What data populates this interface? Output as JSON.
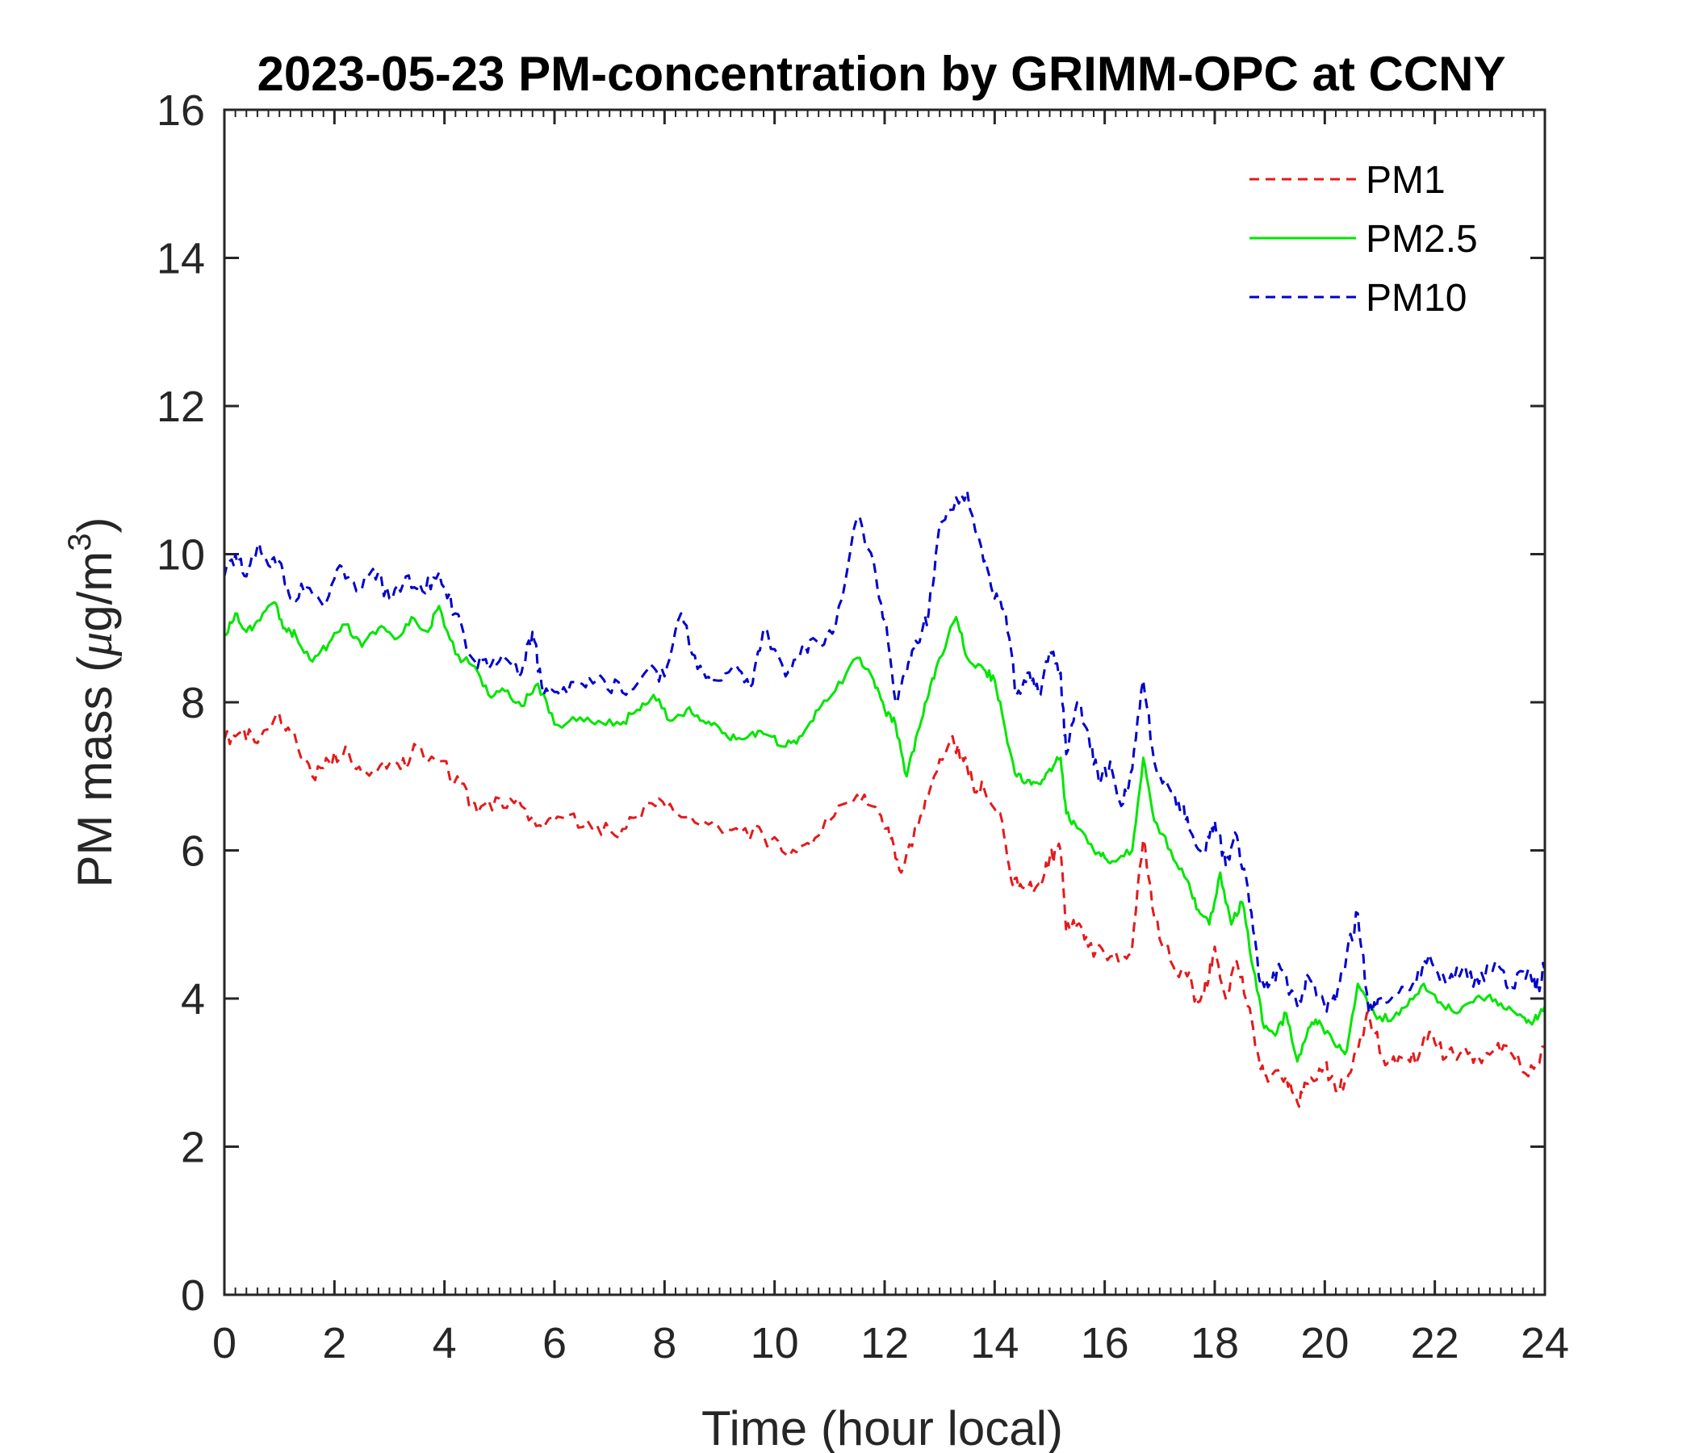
{
  "chart_data": {
    "type": "line",
    "title": "2023-05-23 PM-concentration by GRIMM-OPC at CCNY",
    "xlabel": "Time (hour local)",
    "ylabel_main": "PM mass (",
    "ylabel_unit_mu": "μ",
    "ylabel_unit_rest": "g/m",
    "ylabel_unit_sup": "3",
    "ylabel_close": ")",
    "xlim": [
      0,
      24
    ],
    "ylim": [
      0,
      16
    ],
    "xticks": [
      "0",
      "2",
      "4",
      "6",
      "8",
      "10",
      "12",
      "14",
      "16",
      "18",
      "20",
      "22",
      "24"
    ],
    "yticks": [
      "0",
      "2",
      "4",
      "6",
      "8",
      "10",
      "12",
      "14",
      "16"
    ],
    "legend_position": "top-right",
    "series": [
      {
        "name": "PM1",
        "color": "#e41a1c",
        "style": "dashed",
        "x": [
          0,
          0.3,
          0.6,
          0.95,
          1.2,
          1.6,
          1.9,
          2.2,
          2.5,
          2.9,
          3.2,
          3.5,
          3.9,
          4.3,
          4.6,
          5.0,
          5.4,
          5.8,
          6.1,
          6.6,
          7.1,
          7.5,
          7.9,
          8.3,
          8.8,
          9.3,
          9.8,
          10.2,
          10.6,
          11.0,
          11.5,
          11.9,
          12.1,
          12.3,
          12.6,
          12.9,
          13.2,
          13.4,
          13.6,
          13.8,
          14.1,
          14.3,
          14.5,
          14.8,
          15.0,
          15.2,
          15.3,
          15.5,
          15.7,
          16.0,
          16.3,
          16.5,
          16.7,
          16.9,
          17.2,
          17.5,
          17.7,
          17.9,
          18.0,
          18.2,
          18.4,
          18.6,
          18.8,
          19.0,
          19.3,
          19.5,
          19.7,
          20.0,
          20.2,
          20.4,
          20.6,
          20.8,
          21.1,
          21.4,
          21.7,
          21.9,
          22.2,
          22.5,
          22.8,
          23.1,
          23.4,
          23.7,
          24.0
        ],
        "values": [
          7.5,
          7.6,
          7.45,
          7.85,
          7.6,
          7.0,
          7.2,
          7.4,
          7.05,
          7.2,
          7.1,
          7.4,
          7.2,
          6.9,
          6.5,
          6.7,
          6.6,
          6.3,
          6.45,
          6.4,
          6.2,
          6.45,
          6.7,
          6.45,
          6.35,
          6.3,
          6.2,
          5.95,
          6.1,
          6.4,
          6.75,
          6.5,
          6.15,
          5.7,
          6.3,
          7.0,
          7.5,
          7.3,
          6.9,
          6.85,
          6.5,
          5.6,
          5.5,
          5.55,
          5.9,
          6.0,
          4.9,
          5.0,
          4.7,
          4.6,
          4.5,
          4.7,
          6.15,
          5.1,
          4.5,
          4.3,
          3.95,
          4.3,
          4.7,
          4.0,
          4.5,
          3.9,
          3.2,
          2.9,
          2.95,
          2.6,
          2.85,
          3.1,
          2.75,
          2.9,
          3.3,
          3.8,
          3.1,
          3.2,
          3.2,
          3.55,
          3.2,
          3.3,
          3.2,
          3.3,
          3.25,
          2.95,
          3.35
        ]
      },
      {
        "name": "PM2.5",
        "color": "#00e600",
        "style": "solid",
        "x": [
          0,
          0.2,
          0.4,
          0.6,
          0.9,
          1.1,
          1.3,
          1.6,
          1.9,
          2.2,
          2.5,
          2.8,
          3.1,
          3.4,
          3.7,
          3.9,
          4.2,
          4.5,
          4.8,
          5.1,
          5.4,
          5.7,
          6.0,
          6.4,
          6.8,
          7.2,
          7.5,
          7.8,
          8.1,
          8.4,
          8.7,
          9.0,
          9.3,
          9.6,
          9.9,
          10.2,
          10.5,
          10.8,
          11.1,
          11.5,
          11.8,
          12.0,
          12.2,
          12.4,
          12.6,
          12.8,
          13.0,
          13.3,
          13.5,
          13.8,
          14.0,
          14.2,
          14.4,
          14.6,
          14.8,
          15.0,
          15.2,
          15.3,
          15.5,
          15.8,
          16.0,
          16.2,
          16.5,
          16.7,
          16.9,
          17.2,
          17.5,
          17.7,
          17.9,
          18.1,
          18.3,
          18.5,
          18.7,
          18.9,
          19.1,
          19.3,
          19.5,
          19.7,
          19.9,
          20.2,
          20.4,
          20.6,
          20.9,
          21.2,
          21.5,
          21.8,
          22.1,
          22.4,
          22.7,
          23.0,
          23.3,
          23.6,
          23.8,
          24.0
        ],
        "values": [
          8.9,
          9.2,
          8.95,
          9.1,
          9.35,
          9.0,
          8.9,
          8.55,
          8.8,
          9.05,
          8.75,
          9.0,
          8.85,
          9.15,
          8.95,
          9.3,
          8.65,
          8.5,
          8.1,
          8.15,
          7.95,
          8.25,
          7.7,
          7.75,
          7.75,
          7.7,
          7.9,
          8.1,
          7.75,
          7.9,
          7.75,
          7.65,
          7.5,
          7.6,
          7.55,
          7.4,
          7.55,
          7.9,
          8.15,
          8.6,
          8.3,
          7.9,
          7.7,
          7.0,
          7.6,
          8.1,
          8.6,
          9.15,
          8.6,
          8.45,
          8.3,
          7.6,
          7.0,
          6.95,
          6.9,
          7.1,
          7.25,
          6.5,
          6.3,
          6.0,
          5.9,
          5.85,
          6.0,
          7.25,
          6.4,
          6.0,
          5.6,
          5.2,
          5.0,
          5.7,
          5.0,
          5.3,
          4.4,
          3.6,
          3.5,
          3.8,
          3.15,
          3.6,
          3.7,
          3.35,
          3.3,
          4.2,
          3.8,
          3.7,
          3.9,
          4.2,
          3.95,
          3.8,
          3.95,
          4.05,
          3.85,
          3.75,
          3.7,
          3.9
        ]
      },
      {
        "name": "PM10",
        "color": "#0000cc",
        "style": "dashed",
        "x": [
          0,
          0.2,
          0.4,
          0.6,
          0.8,
          1.0,
          1.2,
          1.5,
          1.8,
          2.1,
          2.4,
          2.7,
          3.0,
          3.3,
          3.6,
          3.9,
          4.2,
          4.5,
          4.8,
          5.1,
          5.4,
          5.6,
          5.8,
          6.1,
          6.5,
          6.9,
          7.3,
          7.7,
          8.0,
          8.3,
          8.6,
          8.9,
          9.3,
          9.6,
          9.8,
          10.2,
          10.5,
          10.8,
          11.1,
          11.5,
          11.8,
          12.0,
          12.2,
          12.4,
          12.6,
          12.8,
          13.0,
          13.2,
          13.5,
          13.8,
          14.0,
          14.2,
          14.4,
          14.6,
          14.8,
          15.0,
          15.2,
          15.3,
          15.5,
          15.7,
          15.9,
          16.1,
          16.3,
          16.5,
          16.7,
          16.9,
          17.2,
          17.4,
          17.6,
          17.8,
          18.0,
          18.2,
          18.4,
          18.6,
          18.8,
          19.0,
          19.2,
          19.5,
          19.7,
          20.0,
          20.2,
          20.4,
          20.6,
          20.8,
          21.0,
          21.3,
          21.6,
          21.9,
          22.2,
          22.5,
          22.8,
          23.1,
          23.4,
          23.7,
          23.9,
          24.0
        ],
        "values": [
          9.7,
          10.0,
          9.7,
          10.1,
          9.85,
          9.9,
          9.4,
          9.55,
          9.3,
          9.85,
          9.5,
          9.8,
          9.4,
          9.7,
          9.5,
          9.75,
          9.2,
          8.6,
          8.45,
          8.6,
          8.4,
          8.95,
          8.1,
          8.1,
          8.25,
          8.3,
          8.1,
          8.45,
          8.35,
          9.2,
          8.45,
          8.3,
          8.5,
          8.25,
          9.0,
          8.35,
          8.75,
          8.8,
          9.0,
          10.5,
          9.9,
          9.1,
          8.0,
          8.4,
          8.8,
          9.2,
          10.4,
          10.6,
          10.85,
          9.9,
          9.4,
          9.2,
          8.1,
          8.4,
          8.1,
          8.7,
          8.4,
          7.3,
          8.0,
          7.6,
          6.9,
          7.2,
          6.6,
          7.1,
          8.3,
          7.2,
          6.8,
          6.6,
          6.2,
          6.0,
          6.4,
          5.8,
          6.2,
          5.5,
          4.3,
          4.2,
          4.4,
          3.9,
          4.3,
          3.9,
          3.95,
          4.6,
          5.15,
          3.8,
          4.0,
          4.05,
          4.2,
          4.6,
          4.2,
          4.4,
          4.2,
          4.5,
          4.15,
          4.4,
          4.1,
          4.55
        ]
      }
    ]
  }
}
